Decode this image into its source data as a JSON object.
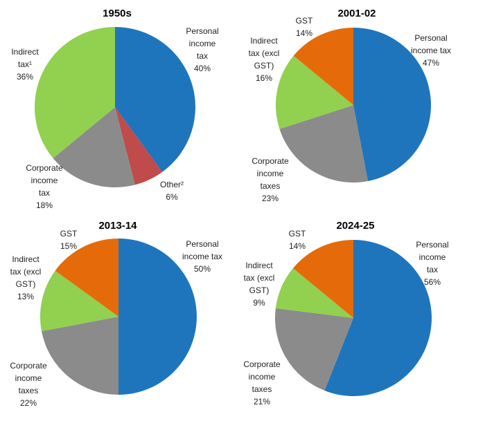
{
  "figure_title": "",
  "palette": {
    "blue": "#1F75BC",
    "green": "#92D050",
    "gray": "#8B8B8B",
    "red": "#BF4B4B",
    "orange": "#E56B0A"
  },
  "chart_data": [
    {
      "type": "pie",
      "title": "1950s",
      "start_angle": "12-oclock",
      "direction": "clockwise",
      "slices": [
        {
          "label": "Personal income tax",
          "value": 40,
          "color": "blue",
          "label_lines": [
            "Personal",
            "income",
            "tax",
            "40%"
          ]
        },
        {
          "label": "Other²",
          "value": 6,
          "color": "red",
          "label_lines": [
            "Other²",
            "6%"
          ]
        },
        {
          "label": "Corporate income tax",
          "value": 18,
          "color": "gray",
          "label_lines": [
            "Corporate",
            "income",
            "tax",
            "18%"
          ]
        },
        {
          "label": "Indirect tax¹",
          "value": 36,
          "color": "green",
          "label_lines": [
            "Indirect",
            "tax¹",
            "36%"
          ]
        }
      ]
    },
    {
      "type": "pie",
      "title": "2001-02",
      "start_angle": "12-oclock",
      "direction": "clockwise",
      "slices": [
        {
          "label": "Personal income tax",
          "value": 47,
          "color": "blue",
          "label_lines": [
            "Personal",
            "income tax",
            "47%"
          ]
        },
        {
          "label": "Corporate income taxes",
          "value": 23,
          "color": "gray",
          "label_lines": [
            "Corporate",
            "income",
            "taxes",
            "23%"
          ]
        },
        {
          "label": "Indirect tax (excl GST)",
          "value": 16,
          "color": "green",
          "label_lines": [
            "Indirect",
            "tax (excl",
            "GST)",
            "16%"
          ]
        },
        {
          "label": "GST",
          "value": 14,
          "color": "orange",
          "label_lines": [
            "GST",
            "14%"
          ]
        }
      ]
    },
    {
      "type": "pie",
      "title": "2013-14",
      "start_angle": "12-oclock",
      "direction": "clockwise",
      "slices": [
        {
          "label": "Personal income tax",
          "value": 50,
          "color": "blue",
          "label_lines": [
            "Personal",
            "income tax",
            "50%"
          ]
        },
        {
          "label": "Corporate income taxes",
          "value": 22,
          "color": "gray",
          "label_lines": [
            "Corporate",
            "income",
            "taxes",
            "22%"
          ]
        },
        {
          "label": "Indirect tax (excl GST)",
          "value": 13,
          "color": "green",
          "label_lines": [
            "Indirect",
            "tax (excl",
            "GST)",
            "13%"
          ]
        },
        {
          "label": "GST",
          "value": 15,
          "color": "orange",
          "label_lines": [
            "GST",
            "15%"
          ]
        }
      ]
    },
    {
      "type": "pie",
      "title": "2024-25",
      "start_angle": "12-oclock",
      "direction": "clockwise",
      "slices": [
        {
          "label": "Personal income tax",
          "value": 56,
          "color": "blue",
          "label_lines": [
            "Personal",
            "income",
            "tax",
            "56%"
          ]
        },
        {
          "label": "Corporate income taxes",
          "value": 21,
          "color": "gray",
          "label_lines": [
            "Corporate",
            "income",
            "taxes",
            "21%"
          ]
        },
        {
          "label": "Indirect tax (excl GST)",
          "value": 9,
          "color": "green",
          "label_lines": [
            "Indirect",
            "tax (excl",
            "GST)",
            "9%"
          ]
        },
        {
          "label": "GST",
          "value": 14,
          "color": "orange",
          "label_lines": [
            "GST",
            "14%"
          ]
        }
      ]
    }
  ]
}
